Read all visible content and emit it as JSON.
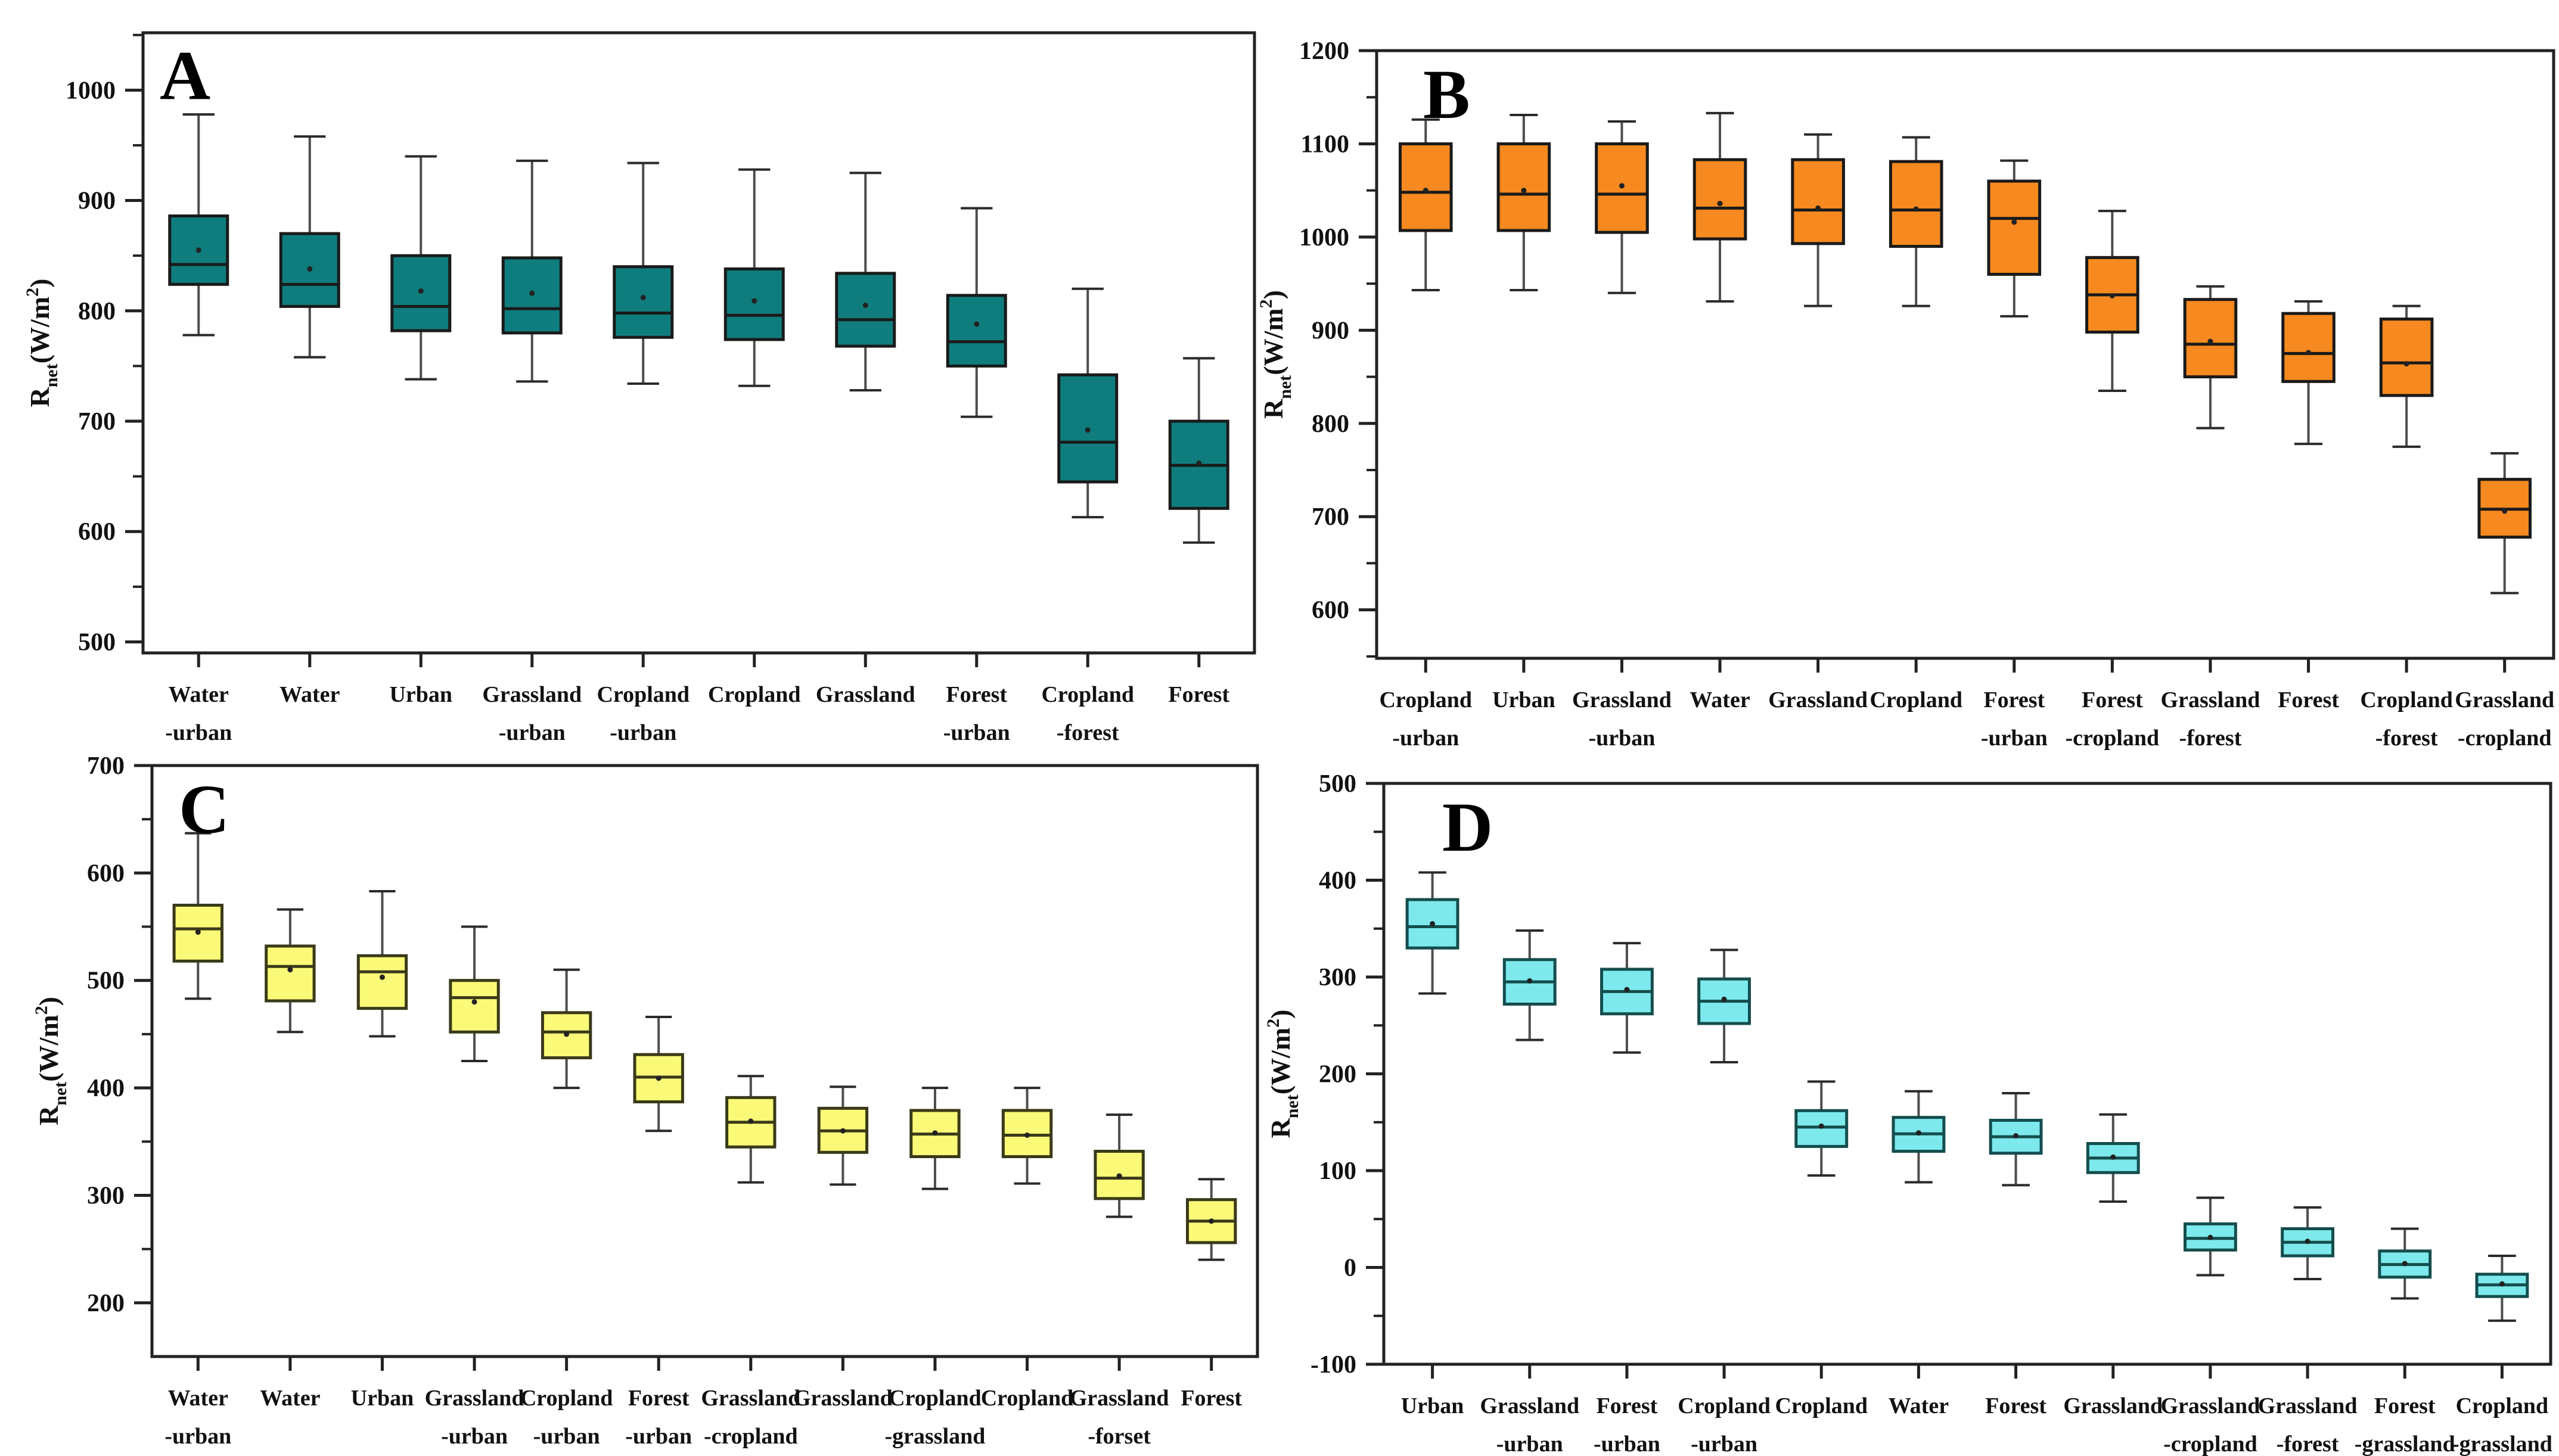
{
  "figure": {
    "type": "four-panel boxplot figure",
    "y_axis_unit": "W/m2",
    "panel_letters": [
      "A",
      "B",
      "C",
      "D"
    ]
  },
  "chart_data": [
    {
      "type": "box",
      "panel_label": "A",
      "box_color": "#0f7d7d",
      "edge_color": "#1a1a1a",
      "whisker_color": "#4d4d4d",
      "ylabel_parts": [
        {
          "t": "R"
        },
        {
          "t": "net",
          "style": "sub"
        },
        {
          "t": "(W/m"
        },
        {
          "t": "2",
          "style": "sup"
        },
        {
          "t": ")"
        }
      ],
      "ylim": [
        490,
        1052
      ],
      "yticks": [
        500,
        600,
        700,
        800,
        900,
        1000
      ],
      "minor_tick_step": 50,
      "grid": false,
      "boxes": [
        {
          "category": [
            "Water",
            "-urban"
          ],
          "low": 778,
          "q1": 824,
          "median": 842,
          "q3": 886,
          "high": 978,
          "mean": 855
        },
        {
          "category": [
            "Water"
          ],
          "low": 758,
          "q1": 804,
          "median": 824,
          "q3": 870,
          "high": 958,
          "mean": 838
        },
        {
          "category": [
            "Urban"
          ],
          "low": 738,
          "q1": 782,
          "median": 804,
          "q3": 850,
          "high": 940,
          "mean": 818
        },
        {
          "category": [
            "Grassland",
            "-urban"
          ],
          "low": 736,
          "q1": 780,
          "median": 802,
          "q3": 848,
          "high": 936,
          "mean": 816
        },
        {
          "category": [
            "Cropland",
            "-urban"
          ],
          "low": 734,
          "q1": 776,
          "median": 798,
          "q3": 840,
          "high": 934,
          "mean": 812
        },
        {
          "category": [
            "Cropland"
          ],
          "low": 732,
          "q1": 774,
          "median": 796,
          "q3": 838,
          "high": 928,
          "mean": 809
        },
        {
          "category": [
            "Grassland"
          ],
          "low": 728,
          "q1": 768,
          "median": 792,
          "q3": 834,
          "high": 925,
          "mean": 805
        },
        {
          "category": [
            "Forest",
            "-urban"
          ],
          "low": 704,
          "q1": 750,
          "median": 772,
          "q3": 814,
          "high": 893,
          "mean": 788
        },
        {
          "category": [
            "Cropland",
            "-forest"
          ],
          "low": 613,
          "q1": 645,
          "median": 681,
          "q3": 742,
          "high": 820,
          "mean": 692
        },
        {
          "category": [
            "Forest"
          ],
          "low": 590,
          "q1": 621,
          "median": 660,
          "q3": 700,
          "high": 757,
          "mean": 662
        }
      ]
    },
    {
      "type": "box",
      "panel_label": "B",
      "box_color": "#f6891f",
      "edge_color": "#1a1a1a",
      "whisker_color": "#4d4d4d",
      "ylabel_parts": [
        {
          "t": "R"
        },
        {
          "t": "net",
          "style": "sub"
        },
        {
          "t": "(W/m"
        },
        {
          "t": "2",
          "style": "sup"
        },
        {
          "t": ")"
        }
      ],
      "ylim": [
        548,
        1200
      ],
      "yticks": [
        600,
        700,
        800,
        900,
        1000,
        1100,
        1200
      ],
      "minor_tick_step": 50,
      "grid": false,
      "boxes": [
        {
          "category": [
            "Cropland",
            "-urban"
          ],
          "low": 943,
          "q1": 1007,
          "median": 1048,
          "q3": 1100,
          "high": 1126,
          "mean": 1050
        },
        {
          "category": [
            "Urban"
          ],
          "low": 943,
          "q1": 1007,
          "median": 1046,
          "q3": 1100,
          "high": 1131,
          "mean": 1050
        },
        {
          "category": [
            "Grassland",
            "-urban"
          ],
          "low": 940,
          "q1": 1005,
          "median": 1046,
          "q3": 1100,
          "high": 1124,
          "mean": 1055
        },
        {
          "category": [
            "Water"
          ],
          "low": 931,
          "q1": 998,
          "median": 1031,
          "q3": 1083,
          "high": 1133,
          "mean": 1036
        },
        {
          "category": [
            "Grassland"
          ],
          "low": 926,
          "q1": 993,
          "median": 1029,
          "q3": 1083,
          "high": 1110,
          "mean": 1031
        },
        {
          "category": [
            "Cropland"
          ],
          "low": 926,
          "q1": 990,
          "median": 1029,
          "q3": 1081,
          "high": 1107,
          "mean": 1030
        },
        {
          "category": [
            "Forest",
            "-urban"
          ],
          "low": 915,
          "q1": 960,
          "median": 1020,
          "q3": 1060,
          "high": 1082,
          "mean": 1016
        },
        {
          "category": [
            "Forest",
            "-cropland"
          ],
          "low": 835,
          "q1": 898,
          "median": 938,
          "q3": 978,
          "high": 1028,
          "mean": 937
        },
        {
          "category": [
            "Grassland",
            "-forest"
          ],
          "low": 795,
          "q1": 850,
          "median": 885,
          "q3": 933,
          "high": 947,
          "mean": 888
        },
        {
          "category": [
            "Forest"
          ],
          "low": 778,
          "q1": 845,
          "median": 875,
          "q3": 918,
          "high": 931,
          "mean": 876
        },
        {
          "category": [
            "Cropland",
            "-forest"
          ],
          "low": 775,
          "q1": 830,
          "median": 865,
          "q3": 912,
          "high": 926,
          "mean": 864
        },
        {
          "category": [
            "Grassland",
            "-cropland"
          ],
          "low": 618,
          "q1": 678,
          "median": 708,
          "q3": 740,
          "high": 768,
          "mean": 706
        }
      ]
    },
    {
      "type": "box",
      "panel_label": "C",
      "box_color": "#fafa78",
      "edge_color": "#3a3a1a",
      "whisker_color": "#4d4d4d",
      "ylabel_parts": [
        {
          "t": "R"
        },
        {
          "t": "net",
          "style": "sub"
        },
        {
          "t": "(W/m"
        },
        {
          "t": "2",
          "style": "sup"
        },
        {
          "t": ")"
        }
      ],
      "ylim": [
        150,
        700
      ],
      "yticks": [
        200,
        300,
        400,
        500,
        600,
        700
      ],
      "minor_tick_step": 50,
      "grid": false,
      "boxes": [
        {
          "category": [
            "Water",
            "-urban"
          ],
          "low": 483,
          "q1": 518,
          "median": 548,
          "q3": 570,
          "high": 637,
          "mean": 545
        },
        {
          "category": [
            "Water"
          ],
          "low": 452,
          "q1": 481,
          "median": 513,
          "q3": 532,
          "high": 566,
          "mean": 510
        },
        {
          "category": [
            "Urban"
          ],
          "low": 448,
          "q1": 474,
          "median": 508,
          "q3": 523,
          "high": 583,
          "mean": 503
        },
        {
          "category": [
            "Grassland",
            "-urban"
          ],
          "low": 425,
          "q1": 452,
          "median": 484,
          "q3": 500,
          "high": 550,
          "mean": 480
        },
        {
          "category": [
            "Cropland",
            "-urban"
          ],
          "low": 400,
          "q1": 428,
          "median": 452,
          "q3": 470,
          "high": 510,
          "mean": 450
        },
        {
          "category": [
            "Forest",
            "-urban"
          ],
          "low": 360,
          "q1": 387,
          "median": 410,
          "q3": 431,
          "high": 466,
          "mean": 409
        },
        {
          "category": [
            "Grassland",
            "-cropland"
          ],
          "low": 312,
          "q1": 345,
          "median": 368,
          "q3": 391,
          "high": 411,
          "mean": 369
        },
        {
          "category": [
            "Grassland"
          ],
          "low": 310,
          "q1": 340,
          "median": 360,
          "q3": 381,
          "high": 401,
          "mean": 360
        },
        {
          "category": [
            "Cropland",
            "-grassland"
          ],
          "low": 306,
          "q1": 336,
          "median": 357,
          "q3": 379,
          "high": 400,
          "mean": 358
        },
        {
          "category": [
            "Cropland"
          ],
          "low": 311,
          "q1": 336,
          "median": 356,
          "q3": 379,
          "high": 400,
          "mean": 356
        },
        {
          "category": [
            "Grassland",
            "-forset"
          ],
          "low": 280,
          "q1": 297,
          "median": 316,
          "q3": 341,
          "high": 375,
          "mean": 318
        },
        {
          "category": [
            "Forest"
          ],
          "low": 240,
          "q1": 256,
          "median": 276,
          "q3": 296,
          "high": 315,
          "mean": 276
        }
      ]
    },
    {
      "type": "box",
      "panel_label": "D",
      "box_color": "#7de9ec",
      "edge_color": "#144d4d",
      "whisker_color": "#4d4d4d",
      "ylabel_parts": [
        {
          "t": "R"
        },
        {
          "t": "net",
          "style": "sub"
        },
        {
          "t": "(W/m"
        },
        {
          "t": "2",
          "style": "sup"
        },
        {
          "t": ")"
        }
      ],
      "ylim": [
        -100,
        500
      ],
      "yticks": [
        -100,
        0,
        100,
        200,
        300,
        400,
        500
      ],
      "minor_tick_step": 50,
      "grid": false,
      "boxes": [
        {
          "category": [
            "Urban"
          ],
          "low": 283,
          "q1": 330,
          "median": 352,
          "q3": 380,
          "high": 408,
          "mean": 355
        },
        {
          "category": [
            "Grassland",
            "-urban"
          ],
          "low": 235,
          "q1": 272,
          "median": 295,
          "q3": 318,
          "high": 348,
          "mean": 296
        },
        {
          "category": [
            "Forest",
            "-urban"
          ],
          "low": 222,
          "q1": 262,
          "median": 285,
          "q3": 308,
          "high": 335,
          "mean": 287
        },
        {
          "category": [
            "Cropland",
            "-urban"
          ],
          "low": 212,
          "q1": 252,
          "median": 275,
          "q3": 298,
          "high": 328,
          "mean": 277
        },
        {
          "category": [
            "Cropland"
          ],
          "low": 95,
          "q1": 125,
          "median": 145,
          "q3": 162,
          "high": 192,
          "mean": 146
        },
        {
          "category": [
            "Water"
          ],
          "low": 88,
          "q1": 120,
          "median": 138,
          "q3": 155,
          "high": 182,
          "mean": 139
        },
        {
          "category": [
            "Forest"
          ],
          "low": 85,
          "q1": 118,
          "median": 135,
          "q3": 152,
          "high": 180,
          "mean": 136
        },
        {
          "category": [
            "Grassland"
          ],
          "low": 68,
          "q1": 98,
          "median": 113,
          "q3": 128,
          "high": 158,
          "mean": 114
        },
        {
          "category": [
            "Grassland",
            "-cropland"
          ],
          "low": -8,
          "q1": 18,
          "median": 30,
          "q3": 45,
          "high": 72,
          "mean": 31
        },
        {
          "category": [
            "Grassland",
            "-forest"
          ],
          "low": -12,
          "q1": 12,
          "median": 26,
          "q3": 40,
          "high": 62,
          "mean": 27
        },
        {
          "category": [
            "Forest",
            "-grassland"
          ],
          "low": -32,
          "q1": -10,
          "median": 3,
          "q3": 17,
          "high": 40,
          "mean": 4
        },
        {
          "category": [
            "Cropland",
            "-grassland"
          ],
          "low": -55,
          "q1": -30,
          "median": -18,
          "q3": -7,
          "high": 12,
          "mean": -17
        }
      ]
    }
  ]
}
